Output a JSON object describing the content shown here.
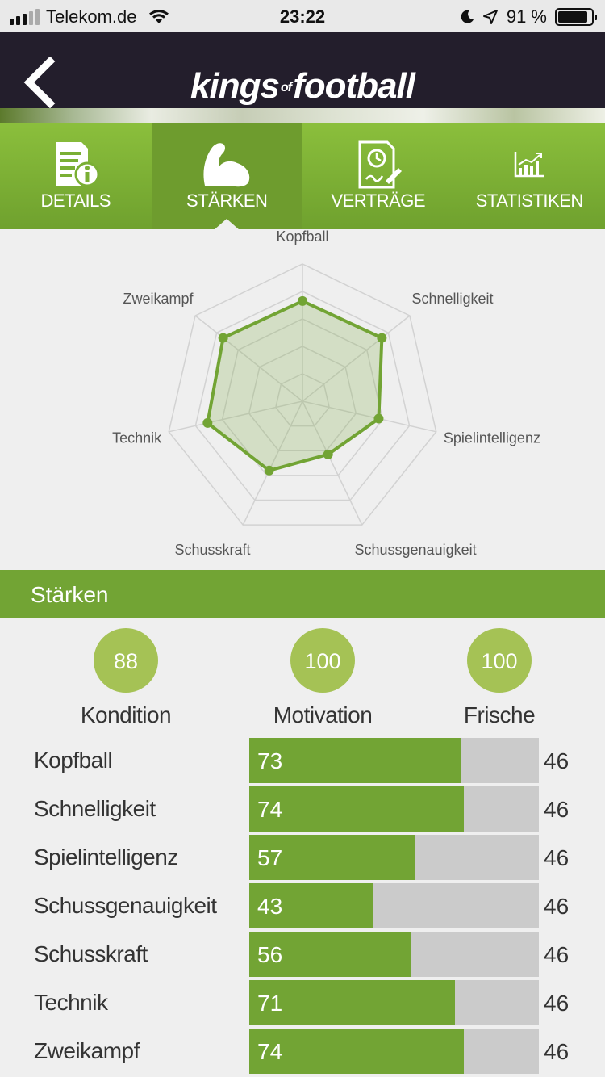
{
  "status_bar": {
    "carrier": "Telekom.de",
    "time": "23:22",
    "battery": "91 %",
    "battery_level": 0.91
  },
  "header": {
    "logo_word1": "kings",
    "logo_of": "of",
    "logo_word2": "football"
  },
  "tabs": [
    {
      "label": "DETAILS",
      "icon": "details-document-icon",
      "active": false
    },
    {
      "label": "STÄRKEN",
      "icon": "flexed-arm-icon",
      "active": true
    },
    {
      "label": "VERTRÄGE",
      "icon": "contract-clock-icon",
      "active": false
    },
    {
      "label": "STATISTIKEN",
      "icon": "statistics-chart-icon",
      "active": false
    }
  ],
  "chart_data": {
    "type": "radar",
    "axes": [
      "Kopfball",
      "Schnelligkeit",
      "Spielintelligenz",
      "Schussgenauigkeit",
      "Schusskraft",
      "Technik",
      "Zweikampf"
    ],
    "values": [
      73,
      74,
      57,
      43,
      56,
      71,
      74
    ],
    "range": [
      0,
      100
    ],
    "rings": 5,
    "series_color": "#72a434"
  },
  "section": {
    "title": "Stärken"
  },
  "summary": [
    {
      "label": "Kondition",
      "value": "88"
    },
    {
      "label": "Motivation",
      "value": "100"
    },
    {
      "label": "Frische",
      "value": "100"
    }
  ],
  "attributes": [
    {
      "name": "Kopfball",
      "value": 73,
      "max_label": "46"
    },
    {
      "name": "Schnelligkeit",
      "value": 74,
      "max_label": "46"
    },
    {
      "name": "Spielintelligenz",
      "value": 57,
      "max_label": "46"
    },
    {
      "name": "Schussgenauigkeit",
      "value": 43,
      "max_label": "46"
    },
    {
      "name": "Schusskraft",
      "value": 56,
      "max_label": "46"
    },
    {
      "name": "Technik",
      "value": 71,
      "max_label": "46"
    },
    {
      "name": "Zweikampf",
      "value": 74,
      "max_label": "46"
    }
  ],
  "colors": {
    "accent_green": "#72a434",
    "light_green": "#a5c255",
    "header_dark": "#231e2c",
    "bar_bg": "#cbcbcb"
  }
}
